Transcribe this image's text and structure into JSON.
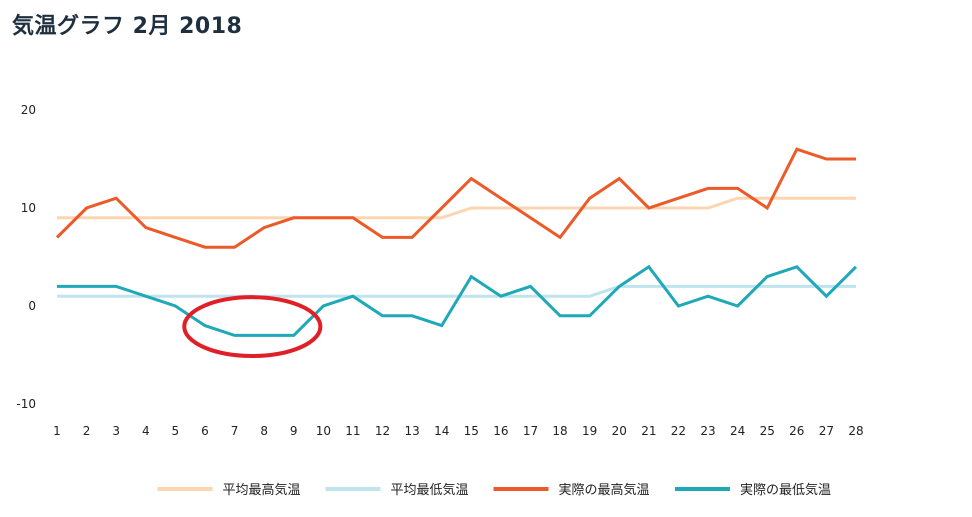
{
  "chart_data": {
    "type": "line",
    "title": "気温グラフ 2月 2018",
    "xlabel": "",
    "ylabel": "",
    "x": [
      1,
      2,
      3,
      4,
      5,
      6,
      7,
      8,
      9,
      10,
      11,
      12,
      13,
      14,
      15,
      16,
      17,
      18,
      19,
      20,
      21,
      22,
      23,
      24,
      25,
      26,
      27,
      28
    ],
    "ylim": [
      -10,
      20
    ],
    "yticks": [
      20,
      10,
      0,
      -10
    ],
    "grid": false,
    "legend_position": "bottom",
    "series": [
      {
        "name": "平均最高気温",
        "color": "#fdd5b1",
        "values": [
          9,
          9,
          9,
          9,
          9,
          9,
          9,
          9,
          9,
          9,
          9,
          9,
          9,
          9,
          10,
          10,
          10,
          10,
          10,
          10,
          10,
          10,
          10,
          11,
          11,
          11,
          11,
          11
        ]
      },
      {
        "name": "平均最低気温",
        "color": "#bfe4ee",
        "values": [
          1,
          1,
          1,
          1,
          1,
          1,
          1,
          1,
          1,
          1,
          1,
          1,
          1,
          1,
          1,
          1,
          1,
          1,
          1,
          2,
          2,
          2,
          2,
          2,
          2,
          2,
          2,
          2
        ]
      },
      {
        "name": "実際の最高気温",
        "color": "#eb5a28",
        "values": [
          7,
          10,
          11,
          8,
          7,
          6,
          6,
          8,
          9,
          9,
          9,
          7,
          7,
          10,
          13,
          11,
          9,
          7,
          11,
          13,
          10,
          11,
          12,
          12,
          10,
          16,
          15,
          15
        ]
      },
      {
        "name": "実際の最低気温",
        "color": "#1fa8b8",
        "values": [
          2,
          2,
          2,
          1,
          0,
          -2,
          -3,
          -3,
          -3,
          0,
          1,
          -1,
          -1,
          -2,
          3,
          1,
          2,
          -1,
          -1,
          2,
          4,
          0,
          1,
          0,
          3,
          4,
          1,
          4
        ]
      }
    ],
    "annotations": [
      {
        "type": "ellipse",
        "color": "#e01f26",
        "x_range": [
          5.3,
          9.9
        ],
        "y_range": [
          -5.1,
          0.9
        ]
      }
    ]
  }
}
